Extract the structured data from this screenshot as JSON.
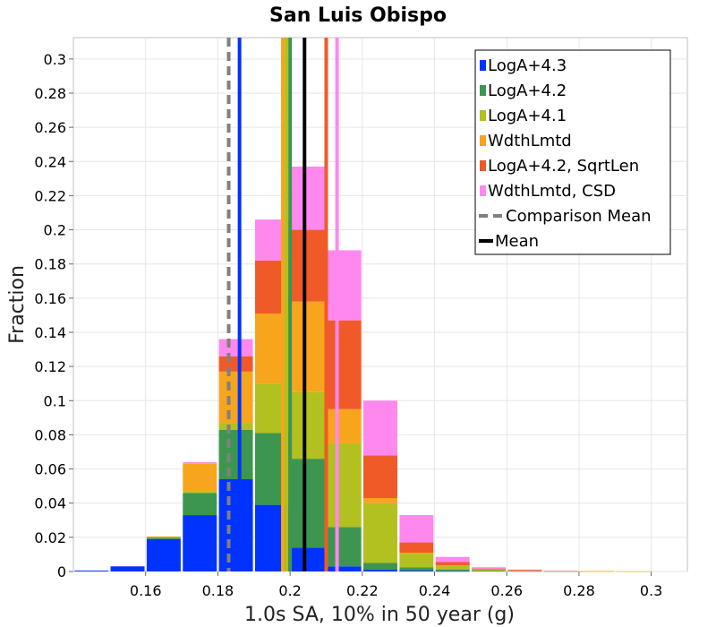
{
  "chart_data": {
    "type": "bar",
    "stacked": true,
    "title": "San Luis Obispo",
    "xlabel": "1.0s SA, 10% in 50 year (g)",
    "ylabel": "Fraction",
    "xlim": [
      0.14,
      0.31
    ],
    "ylim": [
      0,
      0.3125
    ],
    "x_ticks": [
      {
        "value": 0.16,
        "label": "0.16"
      },
      {
        "value": 0.18,
        "label": "0.18"
      },
      {
        "value": 0.2,
        "label": "0.2"
      },
      {
        "value": 0.22,
        "label": "0.22"
      },
      {
        "value": 0.24,
        "label": "0.24"
      },
      {
        "value": 0.26,
        "label": "0.26"
      },
      {
        "value": 0.28,
        "label": "0.28"
      },
      {
        "value": 0.3,
        "label": "0.3"
      }
    ],
    "y_ticks": [
      {
        "value": 0,
        "label": "0"
      },
      {
        "value": 0.02,
        "label": "0.02"
      },
      {
        "value": 0.04,
        "label": "0.04"
      },
      {
        "value": 0.06,
        "label": "0.06"
      },
      {
        "value": 0.08,
        "label": "0.08"
      },
      {
        "value": 0.1,
        "label": "0.1"
      },
      {
        "value": 0.12,
        "label": "0.12"
      },
      {
        "value": 0.14,
        "label": "0.14"
      },
      {
        "value": 0.16,
        "label": "0.16"
      },
      {
        "value": 0.18,
        "label": "0.18"
      },
      {
        "value": 0.2,
        "label": "0.2"
      },
      {
        "value": 0.22,
        "label": "0.22"
      },
      {
        "value": 0.24,
        "label": "0.24"
      },
      {
        "value": 0.26,
        "label": "0.26"
      },
      {
        "value": 0.28,
        "label": "0.28"
      },
      {
        "value": 0.3,
        "label": "0.3"
      }
    ],
    "grid": true,
    "legend_position": "top-right",
    "bin_width": 0.01,
    "bin_centers": [
      0.145,
      0.155,
      0.165,
      0.175,
      0.185,
      0.195,
      0.205,
      0.215,
      0.225,
      0.235,
      0.245,
      0.255,
      0.265,
      0.275,
      0.285,
      0.295,
      0.305
    ],
    "series": [
      {
        "name": "LogA+4.3",
        "color": "#0033ff",
        "values": [
          0.0005,
          0.003,
          0.019,
          0.033,
          0.054,
          0.039,
          0.014,
          0.003,
          0.001,
          0.0005,
          0.0002,
          0,
          0,
          0,
          0,
          0,
          0
        ]
      },
      {
        "name": "LogA+4.2",
        "color": "#3d9650",
        "values": [
          0,
          0,
          0.0008,
          0.013,
          0.029,
          0.042,
          0.052,
          0.023,
          0.004,
          0.002,
          0.001,
          0.0005,
          0.0002,
          0.0001,
          0,
          0,
          0
        ]
      },
      {
        "name": "LogA+4.1",
        "color": "#b2c020",
        "values": [
          0,
          0,
          0.0005,
          0.001,
          0.004,
          0.029,
          0.039,
          0.049,
          0.035,
          0.008,
          0.002,
          0.0005,
          0.0003,
          0.0001,
          0.0001,
          0,
          0
        ]
      },
      {
        "name": "WdthLmtd",
        "color": "#f7a51c",
        "values": [
          0,
          0,
          0.0002,
          0.016,
          0.03,
          0.041,
          0.053,
          0.02,
          0.003,
          0.0005,
          0.0003,
          0.0002,
          0.0001,
          0.0001,
          0.0001,
          0.0001,
          0
        ],
        "mean": 0.198
      },
      {
        "name": "LogA+4.2, SqrtLen",
        "color": "#f05a28",
        "values": [
          0,
          0,
          0,
          0,
          0.009,
          0.031,
          0.042,
          0.052,
          0.025,
          0.006,
          0.002,
          0.0005,
          0.0002,
          0,
          0,
          0,
          0
        ],
        "mean": 0.21
      },
      {
        "name": "WdthLmtd, CSD",
        "color": "#ff88ee",
        "values": [
          0,
          0,
          0,
          0.001,
          0.01,
          0.024,
          0.037,
          0.041,
          0.032,
          0.016,
          0.003,
          0.0008,
          0.0003,
          0.0001,
          0,
          0,
          0
        ],
        "mean": 0.213
      }
    ],
    "mean_lines": [
      {
        "name": "LogA+4.3",
        "x": 0.186,
        "color": "#0033ff"
      },
      {
        "name": "WdthLmtd",
        "x": 0.198,
        "color": "#f7a51c"
      },
      {
        "name": "LogA+4.2",
        "x": 0.2,
        "color": "#3d9650"
      },
      {
        "name": "LogA+4.1",
        "x": 0.199,
        "color": "#b2c020"
      },
      {
        "name": "LogA+4.2, SqrtLen",
        "x": 0.21,
        "color": "#f05a28"
      },
      {
        "name": "WdthLmtd, CSD",
        "x": 0.213,
        "color": "#ff88ee"
      }
    ],
    "comparison_mean": {
      "name": "Comparison Mean",
      "x": 0.183,
      "color": "#808080",
      "style": "dashed"
    },
    "overall_mean": {
      "name": "Mean",
      "x": 0.204,
      "color": "#000000",
      "style": "solid"
    }
  }
}
